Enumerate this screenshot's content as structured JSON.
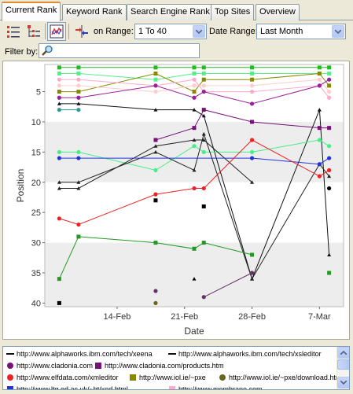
{
  "tabs": [
    {
      "label": "Current Rank",
      "active": true
    },
    {
      "label": "Keyword Rank",
      "active": false
    },
    {
      "label": "Search Engine Rank",
      "active": false
    },
    {
      "label": "Top Sites",
      "active": false
    },
    {
      "label": "Overview",
      "active": false
    }
  ],
  "toolbar": {
    "range_label": "on Range:",
    "range_value": "1 To 40",
    "date_range_label": "Date Range:",
    "date_range_value": "Last Month",
    "icons": [
      "list-view-icon",
      "tree-view-icon",
      "chart-view-icon",
      "compare-icon"
    ]
  },
  "filter": {
    "label": "Filter by:",
    "value": "",
    "icon": "search-icon"
  },
  "chart_data": {
    "type": "line",
    "xlabel": "Date",
    "ylabel": "Position",
    "x_ticks": [
      "14-Feb",
      "21-Feb",
      "28-Feb",
      "7-Mar"
    ],
    "y_ticks": [
      5,
      10,
      15,
      20,
      25,
      30,
      35,
      40
    ],
    "y_range": [
      1,
      40
    ],
    "y_inverted": true,
    "x_unit": "day",
    "x_domain_labels": [
      "8-Feb",
      "9-Mar"
    ],
    "grid_bands": true,
    "series": [
      {
        "color": "#22bb22",
        "marker": "square",
        "points": [
          [
            8,
            1
          ],
          [
            10,
            1
          ],
          [
            18,
            1
          ],
          [
            22,
            1
          ],
          [
            23,
            1
          ],
          [
            28,
            1
          ],
          [
            35,
            1
          ],
          [
            36,
            1
          ]
        ]
      },
      {
        "color": "#55ee88",
        "marker": "square",
        "points": [
          [
            8,
            2
          ],
          [
            10,
            2
          ],
          [
            18,
            3
          ],
          [
            22,
            2
          ],
          [
            23,
            2
          ],
          [
            28,
            2
          ],
          [
            35,
            2
          ],
          [
            36,
            2
          ]
        ]
      },
      {
        "color": "#888800",
        "marker": "square",
        "points": [
          [
            8,
            5
          ],
          [
            10,
            5
          ],
          [
            18,
            2
          ],
          [
            22,
            5
          ],
          [
            23,
            3
          ],
          [
            28,
            3
          ],
          [
            35,
            2
          ],
          [
            36,
            4
          ]
        ]
      },
      {
        "color": "#ffaacc",
        "marker": "circle",
        "points": [
          [
            8,
            3
          ],
          [
            10,
            3
          ],
          [
            18,
            4
          ],
          [
            22,
            3
          ],
          [
            23,
            5
          ],
          [
            28,
            5
          ],
          [
            35,
            4
          ],
          [
            36,
            6
          ]
        ]
      },
      {
        "color": "#ffcccc",
        "marker": "circle",
        "points": [
          [
            8,
            4
          ],
          [
            10,
            4
          ],
          [
            18,
            5
          ],
          [
            22,
            4
          ],
          [
            23,
            4
          ],
          [
            28,
            4
          ],
          [
            35,
            3
          ],
          [
            36,
            5
          ]
        ]
      },
      {
        "color": "#992299",
        "marker": "circle",
        "points": [
          [
            8,
            6
          ],
          [
            10,
            6
          ],
          [
            18,
            4
          ],
          [
            22,
            6
          ],
          [
            23,
            5
          ],
          [
            28,
            7
          ],
          [
            35,
            4
          ],
          [
            36,
            3
          ]
        ]
      },
      {
        "color": "#111111",
        "marker": "triangle",
        "points": [
          [
            8,
            7
          ],
          [
            10,
            7
          ],
          [
            18,
            8
          ],
          [
            22,
            8
          ],
          [
            23,
            9
          ],
          [
            28,
            36
          ],
          [
            35,
            8
          ],
          [
            36,
            32
          ]
        ]
      },
      {
        "color": "#339999",
        "marker": "circle",
        "points": [
          [
            8,
            8
          ],
          [
            10,
            8
          ]
        ]
      },
      {
        "color": "#771177",
        "marker": "square",
        "points": [
          [
            18,
            13
          ],
          [
            22,
            11
          ],
          [
            23,
            8
          ],
          [
            28,
            10
          ],
          [
            35,
            11
          ],
          [
            36,
            11
          ]
        ]
      },
      {
        "color": "#44ee88",
        "marker": "circle",
        "points": [
          [
            8,
            15
          ],
          [
            10,
            15
          ],
          [
            18,
            18
          ],
          [
            22,
            14
          ],
          [
            23,
            15
          ],
          [
            28,
            15
          ],
          [
            35,
            13
          ],
          [
            36,
            14
          ]
        ]
      },
      {
        "color": "#222222",
        "marker": "triangle",
        "points": [
          [
            8,
            21
          ],
          [
            10,
            21
          ],
          [
            18,
            14
          ],
          [
            22,
            13
          ],
          [
            23,
            13
          ],
          [
            28,
            20
          ]
        ]
      },
      {
        "color": "#222222",
        "marker": "triangle",
        "points": [
          [
            8,
            20
          ],
          [
            10,
            20
          ],
          [
            18,
            15
          ],
          [
            22,
            18
          ],
          [
            23,
            12
          ],
          [
            28,
            36
          ],
          [
            35,
            17
          ],
          [
            36,
            19
          ]
        ]
      },
      {
        "color": "#2233dd",
        "marker": "circle",
        "points": [
          [
            8,
            16
          ],
          [
            10,
            16
          ],
          [
            28,
            16
          ],
          [
            35,
            17
          ],
          [
            36,
            16
          ]
        ]
      },
      {
        "color": "#ee2222",
        "marker": "circle",
        "points": [
          [
            8,
            26
          ],
          [
            10,
            27
          ],
          [
            18,
            22
          ],
          [
            22,
            21
          ],
          [
            23,
            21
          ],
          [
            28,
            13
          ],
          [
            35,
            19
          ],
          [
            36,
            18
          ]
        ]
      },
      {
        "color": "#229922",
        "marker": "square",
        "points": [
          [
            8,
            36
          ],
          [
            10,
            29
          ],
          [
            18,
            30
          ],
          [
            22,
            31
          ],
          [
            23,
            30
          ],
          [
            28,
            32
          ]
        ]
      },
      {
        "color": "#663366",
        "marker": "circle",
        "points": [
          [
            23,
            39
          ],
          [
            28,
            35
          ]
        ]
      }
    ],
    "singles": [
      {
        "color": "#000000",
        "marker": "square",
        "x": 18,
        "y": 23
      },
      {
        "color": "#000000",
        "marker": "square",
        "x": 23,
        "y": 24
      },
      {
        "color": "#000000",
        "marker": "circle",
        "x": 36,
        "y": 21
      },
      {
        "color": "#000000",
        "marker": "triangle",
        "x": 22,
        "y": 36
      },
      {
        "color": "#000000",
        "marker": "square",
        "x": 8,
        "y": 40
      },
      {
        "color": "#663366",
        "marker": "circle",
        "x": 18,
        "y": 38
      },
      {
        "color": "#666622",
        "marker": "circle",
        "x": 18,
        "y": 40
      },
      {
        "color": "#229922",
        "marker": "square",
        "x": 36,
        "y": 35
      }
    ]
  },
  "legend": {
    "rows": [
      [
        {
          "label": "http://www.alphaworks.ibm.com/tech/xeena",
          "color": "#111111",
          "marker": "line"
        },
        {
          "label": "http://www.alphaworks.ibm.com/tech/xsleditor",
          "color": "#111111",
          "marker": "line"
        }
      ],
      [
        {
          "label": "http://www.cladonia.com",
          "color": "#771177",
          "marker": "circle"
        },
        {
          "label": "http://www.cladonia.com/products.htm",
          "color": "#771177",
          "marker": "square"
        }
      ],
      [
        {
          "label": "http://www.elfdata.com/xmleditor",
          "color": "#ee2222",
          "marker": "circle"
        },
        {
          "label": "http://www.iol.ie/~pxe",
          "color": "#888800",
          "marker": "square"
        },
        {
          "label": "http://www.iol.ie/~pxe/download.htm",
          "color": "#666622",
          "marker": "circle"
        }
      ],
      [
        {
          "label": "http://www.ltg.ed.ac.uk/~ht/xed.html",
          "color": "#2233dd",
          "marker": "square"
        },
        {
          "label": "http://www.membrane.com",
          "color": "#ffaacc",
          "marker": "square"
        }
      ]
    ]
  }
}
